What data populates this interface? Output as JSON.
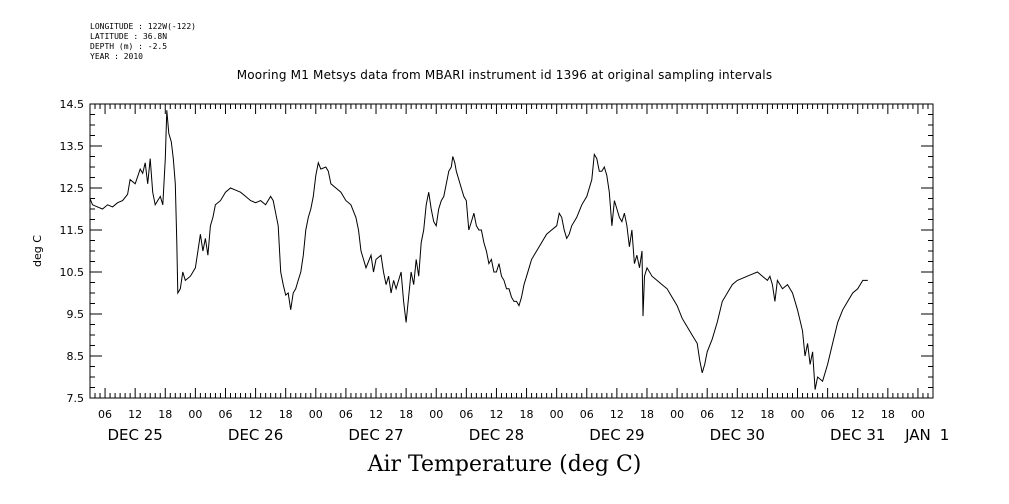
{
  "meta": {
    "longitude": "LONGITUDE : 122W(-122)",
    "latitude": "LATITUDE : 36.8N",
    "depth": "DEPTH (m) : -2.5",
    "year": "YEAR : 2010"
  },
  "chart_data": {
    "type": "line",
    "title": "Mooring M1 Metsys data from MBARI instrument id 1396 at original sampling intervals",
    "bottom_title": "Air Temperature (deg C)",
    "ylabel": "deg C",
    "xlabel": "",
    "ylim": [
      7.5,
      14.5
    ],
    "yticks": [
      "14.5",
      "13.5",
      "12.5",
      "11.5",
      "10.5",
      "9.5",
      "8.5",
      "7.5"
    ],
    "x_unit": "hours since 2010-12-25 00:00",
    "xlim": [
      3,
      171
    ],
    "x_hour_ticks": [
      {
        "h": 6,
        "label": "06"
      },
      {
        "h": 12,
        "label": "12"
      },
      {
        "h": 18,
        "label": "18"
      },
      {
        "h": 24,
        "label": "00"
      },
      {
        "h": 30,
        "label": "06"
      },
      {
        "h": 36,
        "label": "12"
      },
      {
        "h": 42,
        "label": "18"
      },
      {
        "h": 48,
        "label": "00"
      },
      {
        "h": 54,
        "label": "06"
      },
      {
        "h": 60,
        "label": "12"
      },
      {
        "h": 66,
        "label": "18"
      },
      {
        "h": 72,
        "label": "00"
      },
      {
        "h": 78,
        "label": "06"
      },
      {
        "h": 84,
        "label": "12"
      },
      {
        "h": 90,
        "label": "18"
      },
      {
        "h": 96,
        "label": "00"
      },
      {
        "h": 102,
        "label": "06"
      },
      {
        "h": 108,
        "label": "12"
      },
      {
        "h": 114,
        "label": "18"
      },
      {
        "h": 120,
        "label": "00"
      },
      {
        "h": 126,
        "label": "06"
      },
      {
        "h": 132,
        "label": "12"
      },
      {
        "h": 138,
        "label": "18"
      },
      {
        "h": 144,
        "label": "00"
      },
      {
        "h": 150,
        "label": "06"
      },
      {
        "h": 156,
        "label": "12"
      },
      {
        "h": 162,
        "label": "18"
      },
      {
        "h": 168,
        "label": "00"
      }
    ],
    "x_day_labels": [
      {
        "h": 12,
        "label": "DEC 25"
      },
      {
        "h": 36,
        "label": "DEC 26"
      },
      {
        "h": 60,
        "label": "DEC 27"
      },
      {
        "h": 84,
        "label": "DEC 28"
      },
      {
        "h": 108,
        "label": "DEC 29"
      },
      {
        "h": 132,
        "label": "DEC 30"
      },
      {
        "h": 156,
        "label": "DEC 31"
      },
      {
        "h": 168,
        "label": "JAN"
      },
      {
        "h": 173.3,
        "label": "1"
      }
    ],
    "series": [
      {
        "color": "#000000",
        "points": [
          [
            3.0,
            12.25
          ],
          [
            3.5,
            12.1
          ],
          [
            4.5,
            12.05
          ],
          [
            5.5,
            12.0
          ],
          [
            6.5,
            12.1
          ],
          [
            7.5,
            12.05
          ],
          [
            8.5,
            12.15
          ],
          [
            9.5,
            12.2
          ],
          [
            10.5,
            12.35
          ],
          [
            11.0,
            12.7
          ],
          [
            12.0,
            12.6
          ],
          [
            13.0,
            12.95
          ],
          [
            13.5,
            12.85
          ],
          [
            14.0,
            13.1
          ],
          [
            14.5,
            12.6
          ],
          [
            15.0,
            13.2
          ],
          [
            15.5,
            12.4
          ],
          [
            16.0,
            12.1
          ],
          [
            16.5,
            12.2
          ],
          [
            17.0,
            12.3
          ],
          [
            17.5,
            12.1
          ],
          [
            18.0,
            13.2
          ],
          [
            18.3,
            14.35
          ],
          [
            18.7,
            13.8
          ],
          [
            19.2,
            13.6
          ],
          [
            19.6,
            13.2
          ],
          [
            20.0,
            12.6
          ],
          [
            20.3,
            11.2
          ],
          [
            20.5,
            10.0
          ],
          [
            21.0,
            10.1
          ],
          [
            21.5,
            10.5
          ],
          [
            22.0,
            10.3
          ],
          [
            23.0,
            10.4
          ],
          [
            24.0,
            10.6
          ],
          [
            24.5,
            11.0
          ],
          [
            25.0,
            11.4
          ],
          [
            25.5,
            11.0
          ],
          [
            26.0,
            11.3
          ],
          [
            26.5,
            10.9
          ],
          [
            27.0,
            11.6
          ],
          [
            27.5,
            11.8
          ],
          [
            28.0,
            12.1
          ],
          [
            29.0,
            12.2
          ],
          [
            30.0,
            12.4
          ],
          [
            31.0,
            12.5
          ],
          [
            32.0,
            12.45
          ],
          [
            33.0,
            12.4
          ],
          [
            34.0,
            12.3
          ],
          [
            35.0,
            12.2
          ],
          [
            36.0,
            12.15
          ],
          [
            37.0,
            12.2
          ],
          [
            38.0,
            12.1
          ],
          [
            39.0,
            12.3
          ],
          [
            39.5,
            12.2
          ],
          [
            40.0,
            11.9
          ],
          [
            40.5,
            11.6
          ],
          [
            41.0,
            10.5
          ],
          [
            41.5,
            10.2
          ],
          [
            42.0,
            9.95
          ],
          [
            42.5,
            10.0
          ],
          [
            43.0,
            9.6
          ],
          [
            43.5,
            10.0
          ],
          [
            44.0,
            10.1
          ],
          [
            44.5,
            10.3
          ],
          [
            45.0,
            10.5
          ],
          [
            45.5,
            10.9
          ],
          [
            46.0,
            11.5
          ],
          [
            46.5,
            11.8
          ],
          [
            47.0,
            12.0
          ],
          [
            47.5,
            12.3
          ],
          [
            48.0,
            12.8
          ],
          [
            48.5,
            13.1
          ],
          [
            49.0,
            12.95
          ],
          [
            50.0,
            13.0
          ],
          [
            50.5,
            12.9
          ],
          [
            51.0,
            12.6
          ],
          [
            52.0,
            12.5
          ],
          [
            53.0,
            12.4
          ],
          [
            54.0,
            12.2
          ],
          [
            55.0,
            12.1
          ],
          [
            56.0,
            11.8
          ],
          [
            56.5,
            11.5
          ],
          [
            57.0,
            11.0
          ],
          [
            57.5,
            10.8
          ],
          [
            58.0,
            10.6
          ],
          [
            59.0,
            10.9
          ],
          [
            59.5,
            10.5
          ],
          [
            60.0,
            10.8
          ],
          [
            61.0,
            10.9
          ],
          [
            61.5,
            10.5
          ],
          [
            62.0,
            10.2
          ],
          [
            62.5,
            10.4
          ],
          [
            63.0,
            10.0
          ],
          [
            63.5,
            10.3
          ],
          [
            64.0,
            10.1
          ],
          [
            65.0,
            10.5
          ],
          [
            65.5,
            9.8
          ],
          [
            66.0,
            9.3
          ],
          [
            66.5,
            9.9
          ],
          [
            67.0,
            10.5
          ],
          [
            67.5,
            10.2
          ],
          [
            68.0,
            10.8
          ],
          [
            68.5,
            10.4
          ],
          [
            69.0,
            11.2
          ],
          [
            69.5,
            11.5
          ],
          [
            70.0,
            12.1
          ],
          [
            70.5,
            12.4
          ],
          [
            71.0,
            12.0
          ],
          [
            71.5,
            11.7
          ],
          [
            72.0,
            11.6
          ],
          [
            72.5,
            12.0
          ],
          [
            73.0,
            12.2
          ],
          [
            73.5,
            12.3
          ],
          [
            74.0,
            12.6
          ],
          [
            74.5,
            12.9
          ],
          [
            75.0,
            13.0
          ],
          [
            75.3,
            13.25
          ],
          [
            75.7,
            13.1
          ],
          [
            76.0,
            12.9
          ],
          [
            76.5,
            12.7
          ],
          [
            77.0,
            12.5
          ],
          [
            77.5,
            12.3
          ],
          [
            78.0,
            12.2
          ],
          [
            78.5,
            11.5
          ],
          [
            79.0,
            11.7
          ],
          [
            79.5,
            11.9
          ],
          [
            80.0,
            11.6
          ],
          [
            80.5,
            11.5
          ],
          [
            81.0,
            11.5
          ],
          [
            81.5,
            11.2
          ],
          [
            82.0,
            11.0
          ],
          [
            82.5,
            10.7
          ],
          [
            83.0,
            10.8
          ],
          [
            83.5,
            10.5
          ],
          [
            84.0,
            10.5
          ],
          [
            84.5,
            10.7
          ],
          [
            85.0,
            10.4
          ],
          [
            85.5,
            10.3
          ],
          [
            86.0,
            10.1
          ],
          [
            86.5,
            10.1
          ],
          [
            87.0,
            9.9
          ],
          [
            87.5,
            9.8
          ],
          [
            88.0,
            9.8
          ],
          [
            88.5,
            9.7
          ],
          [
            89.0,
            9.9
          ],
          [
            89.5,
            10.2
          ],
          [
            90.0,
            10.4
          ],
          [
            90.5,
            10.6
          ],
          [
            91.0,
            10.8
          ],
          [
            92.0,
            11.0
          ],
          [
            93.0,
            11.2
          ],
          [
            94.0,
            11.4
          ],
          [
            95.0,
            11.5
          ],
          [
            96.0,
            11.6
          ],
          [
            96.5,
            11.9
          ],
          [
            97.0,
            11.8
          ],
          [
            97.5,
            11.5
          ],
          [
            98.0,
            11.3
          ],
          [
            98.5,
            11.4
          ],
          [
            99.0,
            11.6
          ],
          [
            100.0,
            11.8
          ],
          [
            101.0,
            12.1
          ],
          [
            102.0,
            12.3
          ],
          [
            103.0,
            12.7
          ],
          [
            103.5,
            13.3
          ],
          [
            104.0,
            13.2
          ],
          [
            104.5,
            12.9
          ],
          [
            105.0,
            12.9
          ],
          [
            105.5,
            13.0
          ],
          [
            106.0,
            12.8
          ],
          [
            106.5,
            12.4
          ],
          [
            107.0,
            11.6
          ],
          [
            107.5,
            12.2
          ],
          [
            108.0,
            12.0
          ],
          [
            108.5,
            11.8
          ],
          [
            109.0,
            11.7
          ],
          [
            109.5,
            11.9
          ],
          [
            110.0,
            11.6
          ],
          [
            110.5,
            11.1
          ],
          [
            111.0,
            11.5
          ],
          [
            111.5,
            10.7
          ],
          [
            112.0,
            10.9
          ],
          [
            112.5,
            10.6
          ],
          [
            113.0,
            11.0
          ],
          [
            113.2,
            9.45
          ],
          [
            113.5,
            10.4
          ],
          [
            114.0,
            10.6
          ],
          [
            115.0,
            10.4
          ],
          [
            116.0,
            10.3
          ],
          [
            117.0,
            10.2
          ],
          [
            118.0,
            10.1
          ],
          [
            119.0,
            9.9
          ],
          [
            120.0,
            9.7
          ],
          [
            121.0,
            9.4
          ],
          [
            122.0,
            9.2
          ],
          [
            123.0,
            9.0
          ],
          [
            124.0,
            8.8
          ],
          [
            124.5,
            8.4
          ],
          [
            125.0,
            8.1
          ],
          [
            125.5,
            8.3
          ],
          [
            126.0,
            8.6
          ],
          [
            127.0,
            8.9
          ],
          [
            128.0,
            9.3
          ],
          [
            129.0,
            9.8
          ],
          [
            130.0,
            10.0
          ],
          [
            131.0,
            10.2
          ],
          [
            132.0,
            10.3
          ],
          [
            133.0,
            10.35
          ],
          [
            134.0,
            10.4
          ],
          [
            135.0,
            10.45
          ],
          [
            136.0,
            10.5
          ],
          [
            137.0,
            10.4
          ],
          [
            138.0,
            10.3
          ],
          [
            138.5,
            10.4
          ],
          [
            139.0,
            10.2
          ],
          [
            139.5,
            9.8
          ],
          [
            140.0,
            10.3
          ],
          [
            141.0,
            10.1
          ],
          [
            142.0,
            10.2
          ],
          [
            143.0,
            10.0
          ],
          [
            144.0,
            9.6
          ],
          [
            145.0,
            9.1
          ],
          [
            145.5,
            8.5
          ],
          [
            146.0,
            8.8
          ],
          [
            146.5,
            8.3
          ],
          [
            147.0,
            8.6
          ],
          [
            147.5,
            7.7
          ],
          [
            148.0,
            8.0
          ],
          [
            149.0,
            7.9
          ],
          [
            150.0,
            8.3
          ],
          [
            151.0,
            8.8
          ],
          [
            152.0,
            9.3
          ],
          [
            153.0,
            9.6
          ],
          [
            154.0,
            9.8
          ],
          [
            155.0,
            10.0
          ],
          [
            156.0,
            10.1
          ],
          [
            157.0,
            10.3
          ],
          [
            158.0,
            10.3
          ]
        ]
      }
    ]
  }
}
